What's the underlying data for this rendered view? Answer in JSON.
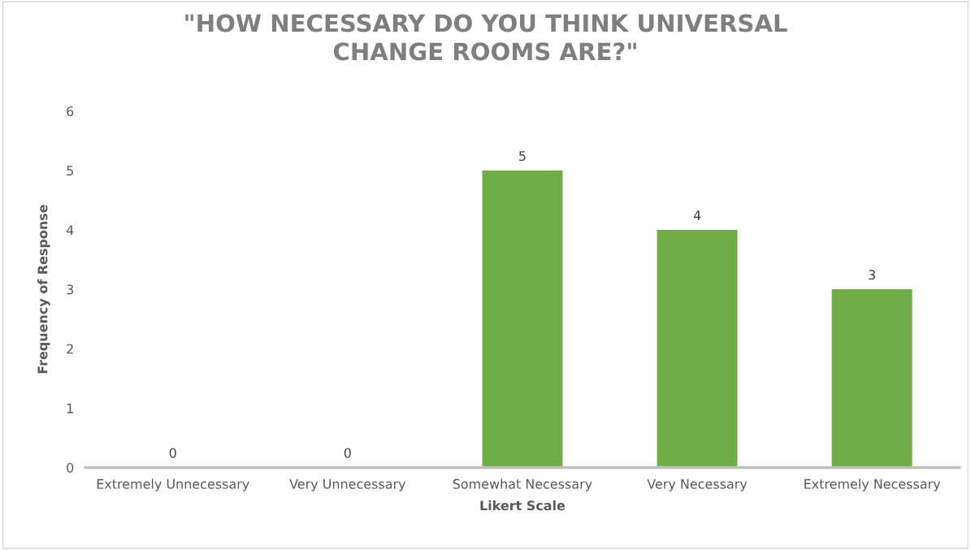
{
  "chart_data": {
    "type": "bar",
    "title": "\"HOW NECESSARY DO YOU THINK UNIVERSAL\nCHANGE ROOMS ARE?\"",
    "xlabel": "Likert Scale",
    "ylabel": "Frequency of Response",
    "categories": [
      "Extremely Unnecessary",
      "Very Unnecessary",
      "Somewhat Necessary",
      "Very Necessary",
      "Extremely Necessary"
    ],
    "values": [
      0,
      0,
      5,
      4,
      3
    ],
    "color": "#70ad47",
    "ylim": [
      0,
      6
    ],
    "yticks": [
      0,
      1,
      2,
      3,
      4,
      5,
      6
    ],
    "grid": false,
    "data_labels": true
  }
}
